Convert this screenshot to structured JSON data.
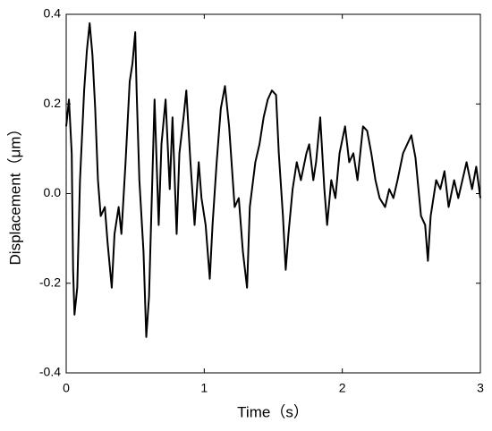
{
  "chart_data": {
    "type": "line",
    "xlabel": "Time（s）",
    "ylabel": "Displacement（μm）",
    "xlim": [
      0,
      3
    ],
    "xticks": [
      0,
      1,
      2,
      3
    ],
    "ylim": [
      -0.4,
      0.4
    ],
    "yticks": [
      -0.4,
      -0.2,
      {
        "value": 0,
        "label": "0.0"
      },
      0.2,
      0.4
    ],
    "grid": false,
    "x": [
      0,
      0.02,
      0.04,
      0.05,
      0.06,
      0.08,
      0.09,
      0.1,
      0.13,
      0.15,
      0.17,
      0.19,
      0.21,
      0.23,
      0.25,
      0.28,
      0.3,
      0.33,
      0.35,
      0.38,
      0.4,
      0.43,
      0.46,
      0.48,
      0.5,
      0.51,
      0.53,
      0.56,
      0.58,
      0.6,
      0.62,
      0.64,
      0.67,
      0.69,
      0.72,
      0.75,
      0.77,
      0.8,
      0.82,
      0.85,
      0.87,
      0.9,
      0.93,
      0.96,
      0.98,
      1.01,
      1.04,
      1.06,
      1.09,
      1.12,
      1.15,
      1.18,
      1.22,
      1.25,
      1.28,
      1.31,
      1.33,
      1.37,
      1.4,
      1.43,
      1.46,
      1.49,
      1.52,
      1.54,
      1.57,
      1.59,
      1.61,
      1.64,
      1.67,
      1.7,
      1.74,
      1.76,
      1.79,
      1.81,
      1.84,
      1.87,
      1.89,
      1.92,
      1.95,
      1.98,
      2.02,
      2.05,
      2.08,
      2.11,
      2.15,
      2.18,
      2.21,
      2.24,
      2.27,
      2.31,
      2.34,
      2.37,
      2.4,
      2.44,
      2.47,
      2.5,
      2.53,
      2.57,
      2.6,
      2.62,
      2.64,
      2.68,
      2.71,
      2.74,
      2.77,
      2.81,
      2.84,
      2.87,
      2.9,
      2.94,
      2.97,
      3.0
    ],
    "series": [
      {
        "color": "#000000",
        "values": [
          0.15,
          0.21,
          0.09,
          -0.17,
          -0.27,
          -0.21,
          -0.09,
          0.03,
          0.23,
          0.32,
          0.38,
          0.31,
          0.19,
          0.03,
          -0.05,
          -0.03,
          -0.11,
          -0.21,
          -0.09,
          -0.03,
          -0.09,
          0.07,
          0.25,
          0.29,
          0.36,
          0.23,
          0.03,
          -0.13,
          -0.32,
          -0.23,
          -0.01,
          0.21,
          -0.07,
          0.11,
          0.21,
          0.01,
          0.17,
          -0.09,
          0.09,
          0.17,
          0.23,
          0.07,
          -0.07,
          0.07,
          -0.01,
          -0.07,
          -0.19,
          -0.07,
          0.07,
          0.19,
          0.24,
          0.15,
          -0.03,
          -0.01,
          -0.13,
          -0.21,
          -0.03,
          0.07,
          0.11,
          0.17,
          0.21,
          0.23,
          0.22,
          0.09,
          -0.05,
          -0.17,
          -0.09,
          0.01,
          0.07,
          0.03,
          0.09,
          0.11,
          0.03,
          0.07,
          0.17,
          0.01,
          -0.07,
          0.03,
          -0.01,
          0.09,
          0.15,
          0.07,
          0.09,
          0.03,
          0.15,
          0.14,
          0.09,
          0.03,
          -0.01,
          -0.03,
          0.01,
          -0.01,
          0.03,
          0.09,
          0.11,
          0.13,
          0.08,
          -0.05,
          -0.07,
          -0.15,
          -0.05,
          0.03,
          0.01,
          0.05,
          -0.03,
          0.03,
          -0.01,
          0.03,
          0.07,
          0.01,
          0.06,
          -0.01
        ]
      }
    ]
  }
}
